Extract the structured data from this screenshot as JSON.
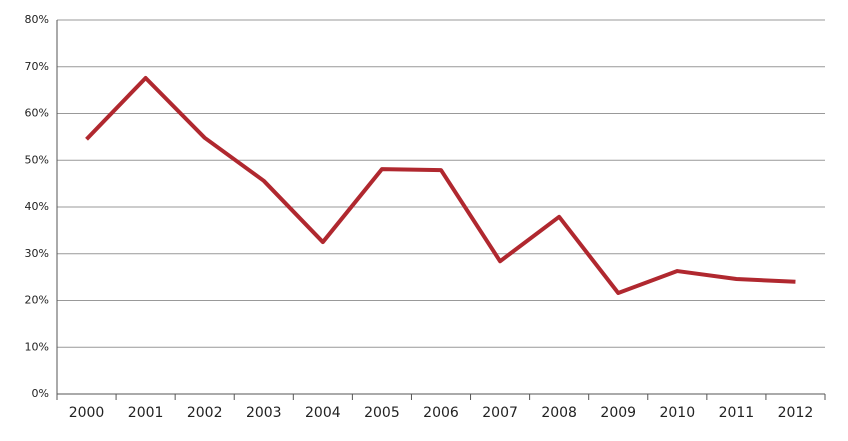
{
  "chart_data": {
    "type": "line",
    "categories": [
      "2000",
      "2001",
      "2002",
      "2003",
      "2004",
      "2005",
      "2006",
      "2007",
      "2008",
      "2009",
      "2010",
      "2011",
      "2012"
    ],
    "series": [
      {
        "color": "#b0282f",
        "values": [
          54.5,
          67.6,
          54.8,
          45.6,
          32.5,
          48.1,
          47.9,
          28.4,
          37.9,
          21.6,
          26.3,
          24.6,
          24.0
        ]
      }
    ],
    "ylim": [
      0,
      80
    ],
    "yticks": [
      {
        "value": 0,
        "label": "0%"
      },
      {
        "value": 10,
        "label": "10%"
      },
      {
        "value": 20,
        "label": "20%"
      },
      {
        "value": 30,
        "label": "30%"
      },
      {
        "value": 40,
        "label": "40%"
      },
      {
        "value": 50,
        "label": "50%"
      },
      {
        "value": 60,
        "label": "60%"
      },
      {
        "value": 70,
        "label": "70%"
      },
      {
        "value": 80,
        "label": "80%"
      }
    ],
    "grid": true
  }
}
